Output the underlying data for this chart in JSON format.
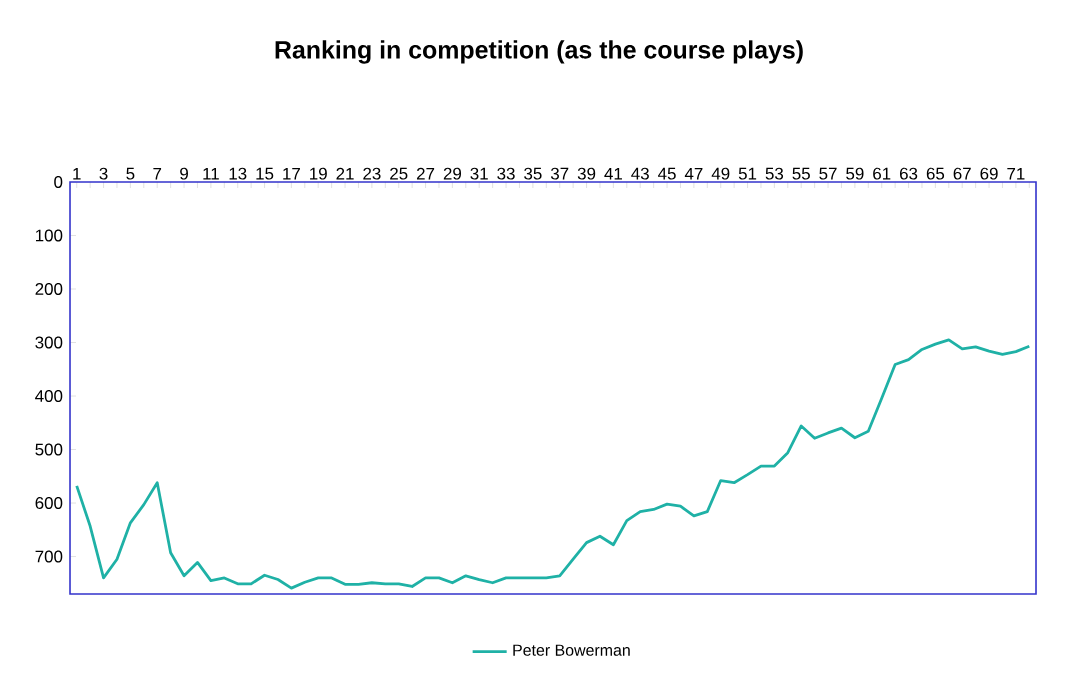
{
  "chart_data": {
    "type": "line",
    "title": "Ranking in competition (as the course plays)",
    "categories": [
      "1",
      null,
      "3",
      null,
      "5",
      null,
      "7",
      null,
      "9",
      null,
      "11",
      null,
      "13",
      null,
      "15",
      null,
      "17",
      null,
      "19",
      null,
      "21",
      null,
      "23",
      null,
      "25",
      null,
      "27",
      null,
      "29",
      null,
      "31",
      null,
      "33",
      null,
      "35",
      null,
      "37",
      null,
      "39",
      null,
      "41",
      null,
      "43",
      null,
      "45",
      null,
      "47",
      null,
      "49",
      null,
      "51",
      null,
      "53",
      null,
      "55",
      null,
      "57",
      null,
      "59",
      null,
      "61",
      null,
      "63",
      null,
      "65",
      null,
      "67",
      null,
      "69",
      null,
      "71",
      null
    ],
    "series": [
      {
        "name": "Peter Bowerman",
        "color": "#1fb1a6",
        "values": [
          568,
          643,
          740,
          705,
          637,
          603,
          562,
          693,
          736,
          711,
          745,
          740,
          751,
          751,
          735,
          743,
          759,
          748,
          740,
          740,
          752,
          752,
          749,
          751,
          751,
          756,
          740,
          740,
          749,
          736,
          743,
          749,
          740,
          740,
          740,
          740,
          736,
          705,
          674,
          662,
          678,
          633,
          616,
          612,
          602,
          606,
          624,
          616,
          558,
          562,
          547,
          531,
          531,
          506,
          456,
          479,
          469,
          460,
          478,
          466,
          404,
          341,
          332,
          313,
          303,
          295,
          312,
          308,
          316,
          322,
          317,
          307
        ]
      }
    ],
    "ylim": [
      770,
      0
    ],
    "yticks": [
      0,
      100,
      200,
      300,
      400,
      500,
      600,
      700
    ],
    "legend": "bottom",
    "marker": "none",
    "line_style": "solid",
    "grid": false
  }
}
